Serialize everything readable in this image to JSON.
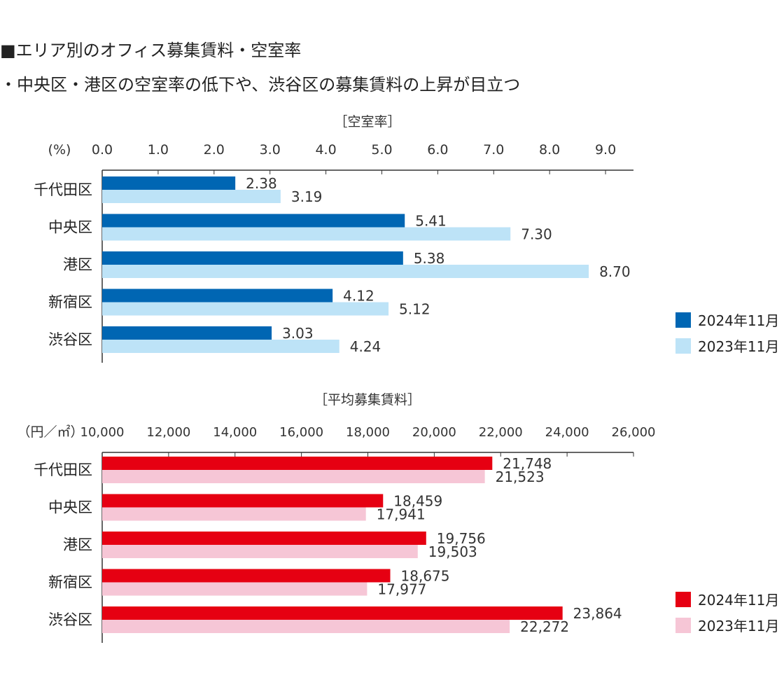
{
  "heading": "■エリア別のオフィス募集賃料・空室率",
  "subheading": "・中央区・港区の空室率の低下や、渋谷区の募集賃料の上昇が目立つ",
  "chart_data": [
    {
      "type": "bar",
      "orientation": "horizontal",
      "title": "［空室率］",
      "unit_label": "(%)",
      "xlim": [
        0,
        9.5
      ],
      "ticks": [
        "0.0",
        "1.0",
        "2.0",
        "3.0",
        "4.0",
        "5.0",
        "6.0",
        "7.0",
        "8.0",
        "9.0"
      ],
      "tick_values": [
        0,
        1,
        2,
        3,
        4,
        5,
        6,
        7,
        8,
        9
      ],
      "categories": [
        "千代田区",
        "中央区",
        "港区",
        "新宿区",
        "渋谷区"
      ],
      "series": [
        {
          "name": "2024年11月",
          "color": "#0066b3",
          "values": [
            2.38,
            5.41,
            5.38,
            4.12,
            3.03
          ],
          "labels": [
            "2.38",
            "5.41",
            "5.38",
            "4.12",
            "3.03"
          ]
        },
        {
          "name": "2023年11月",
          "color": "#bde3f7",
          "values": [
            3.19,
            7.3,
            8.7,
            5.12,
            4.24
          ],
          "labels": [
            "3.19",
            "7.30",
            "8.70",
            "5.12",
            "4.24"
          ]
        }
      ],
      "legend_position": "bottom-right"
    },
    {
      "type": "bar",
      "orientation": "horizontal",
      "title": "［平均募集賃料］",
      "unit_label": "（円／㎡）",
      "xlim": [
        10000,
        26000
      ],
      "ticks": [
        "10,000",
        "12,000",
        "14,000",
        "16,000",
        "18,000",
        "20,000",
        "22,000",
        "24,000",
        "26,000"
      ],
      "tick_values": [
        10000,
        12000,
        14000,
        16000,
        18000,
        20000,
        22000,
        24000,
        26000
      ],
      "categories": [
        "千代田区",
        "中央区",
        "港区",
        "新宿区",
        "渋谷区"
      ],
      "series": [
        {
          "name": "2024年11月",
          "color": "#e60012",
          "values": [
            21748,
            18459,
            19756,
            18675,
            23864
          ],
          "labels": [
            "21,748",
            "18,459",
            "19,756",
            "18,675",
            "23,864"
          ]
        },
        {
          "name": "2023年11月",
          "color": "#f6c6d6",
          "values": [
            21523,
            17941,
            19503,
            17977,
            22272
          ],
          "labels": [
            "21,523",
            "17,941",
            "19,503",
            "17,977",
            "22,272"
          ]
        }
      ],
      "legend_position": "bottom-right"
    }
  ]
}
